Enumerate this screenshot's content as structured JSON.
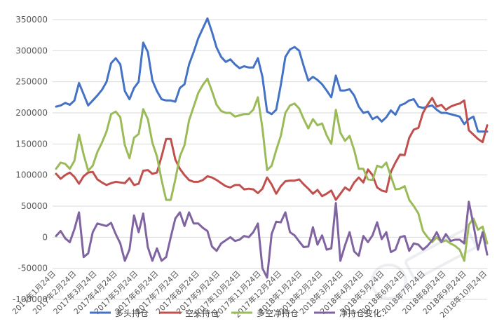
{
  "chart_data": {
    "type": "line",
    "title": "",
    "xlabel": "",
    "ylabel": "",
    "ylim": [
      -100000,
      350000
    ],
    "yticks": [
      -100000,
      -50000,
      0,
      50000,
      100000,
      150000,
      200000,
      250000,
      300000,
      350000
    ],
    "ytick_labels": [
      "-100000",
      "-50000",
      "0",
      "50000",
      "100000",
      "150000",
      "200000",
      "250000",
      "300000",
      "350000"
    ],
    "grid": true,
    "legend_position": "bottom",
    "x_labels": [
      "2017年1月24日",
      "2017年2月24日",
      "2017年3月24日",
      "2017年4月24日",
      "2017年5月24日",
      "2017年6月24日",
      "2017年7月24日",
      "2017年8月24日",
      "2017年9月24日",
      "2017年10月24日",
      "2017年11月24日",
      "2017年12月24日",
      "2018年1月24日",
      "2018年2月24日",
      "2018年3月24日",
      "2018年4月24日",
      "2018年5月24日",
      "2018年6月24日",
      "2018年7月24日",
      "2018年8月24日",
      "2018年9月24日",
      "2018年10月24日"
    ],
    "series": [
      {
        "name": "多头持仓",
        "color": "#4472C4",
        "values": [
          210000,
          212000,
          216000,
          213000,
          220000,
          248000,
          230000,
          212000,
          220000,
          228000,
          237000,
          250000,
          280000,
          288000,
          278000,
          235000,
          222000,
          240000,
          250000,
          313000,
          298000,
          252000,
          235000,
          222000,
          220000,
          220000,
          218000,
          240000,
          246000,
          278000,
          298000,
          320000,
          336000,
          352000,
          330000,
          305000,
          290000,
          282000,
          286000,
          278000,
          272000,
          275000,
          273000,
          273000,
          288000,
          258000,
          202000,
          198000,
          205000,
          245000,
          290000,
          302000,
          306000,
          300000,
          275000,
          252000,
          258000,
          253000,
          246000,
          236000,
          225000,
          260000,
          236000,
          236000,
          238000,
          228000,
          210000,
          200000,
          202000,
          190000,
          194000,
          186000,
          193000,
          204000,
          197000,
          212000,
          215000,
          220000,
          222000,
          210000,
          208000,
          210000,
          212000,
          205000,
          200000,
          200000,
          198000,
          196000,
          194000,
          182000,
          190000,
          194000,
          170000,
          170000,
          170000
        ]
      },
      {
        "name": "空头持仓",
        "color": "#C0504D",
        "values": [
          102000,
          94000,
          100000,
          104000,
          97000,
          86000,
          98000,
          104000,
          105000,
          93000,
          88000,
          84000,
          87000,
          89000,
          88000,
          87000,
          95000,
          84000,
          86000,
          107000,
          108000,
          102000,
          104000,
          130000,
          158000,
          158000,
          125000,
          110000,
          100000,
          92000,
          89000,
          89000,
          92000,
          98000,
          96000,
          92000,
          87000,
          82000,
          80000,
          84000,
          84000,
          77000,
          78000,
          77000,
          71000,
          78000,
          96000,
          85000,
          70000,
          82000,
          90000,
          91000,
          91000,
          93000,
          85000,
          78000,
          70000,
          76000,
          66000,
          70000,
          75000,
          60000,
          70000,
          80000,
          75000,
          88000,
          96000,
          88000,
          109000,
          100000,
          80000,
          75000,
          73000,
          105000,
          120000,
          133000,
          132000,
          160000,
          173000,
          176000,
          200000,
          213000,
          224000,
          210000,
          213000,
          205000,
          210000,
          213000,
          215000,
          220000,
          172000,
          165000,
          158000,
          153000,
          180000
        ]
      },
      {
        "name": "多空净持仓",
        "color": "#9BBB59",
        "values": [
          110000,
          120000,
          118000,
          110000,
          123000,
          165000,
          133000,
          107000,
          115000,
          137000,
          152000,
          170000,
          198000,
          202000,
          193000,
          148000,
          127000,
          160000,
          166000,
          206000,
          190000,
          152000,
          130000,
          92000,
          60000,
          60000,
          93000,
          130000,
          148000,
          188000,
          210000,
          232000,
          245000,
          255000,
          235000,
          213000,
          203000,
          200000,
          200000,
          194000,
          196000,
          198000,
          198000,
          205000,
          225000,
          175000,
          108000,
          115000,
          140000,
          163000,
          200000,
          212000,
          215000,
          207000,
          190000,
          175000,
          190000,
          180000,
          183000,
          164000,
          150000,
          205000,
          168000,
          155000,
          163000,
          140000,
          110000,
          110000,
          93000,
          92000,
          115000,
          112000,
          120000,
          98000,
          77000,
          78000,
          82000,
          60000,
          50000,
          38000,
          10000,
          0,
          -8000,
          0,
          -8000,
          -5000,
          -10000,
          -14000,
          -20000,
          -38000,
          20000,
          30000,
          12000,
          17000,
          -10000
        ]
      },
      {
        "name": "净持仓变化：",
        "color": "#8064A2",
        "values": [
          2000,
          10000,
          -2000,
          -8000,
          13000,
          40000,
          -32000,
          -26000,
          8000,
          22000,
          20000,
          18000,
          23000,
          5000,
          -10000,
          -38000,
          -20000,
          35000,
          8000,
          38000,
          -16000,
          -38000,
          -18000,
          -38000,
          -32000,
          0,
          30000,
          40000,
          18000,
          40000,
          22000,
          22000,
          15000,
          10000,
          -15000,
          -22000,
          -10000,
          -5000,
          0,
          -6000,
          -4000,
          2000,
          0,
          8000,
          22000,
          -50000,
          -65000,
          5000,
          25000,
          24000,
          40000,
          8000,
          3000,
          -7000,
          -16000,
          -15000,
          16000,
          -12000,
          3000,
          -20000,
          -18000,
          55000,
          -38000,
          -13000,
          8000,
          -23000,
          -30000,
          2000,
          -8000,
          3000,
          24000,
          -3000,
          8000,
          -24000,
          -20000,
          0,
          2000,
          -22000,
          -10000,
          -12000,
          -20000,
          -14000,
          -5000,
          8000,
          -8000,
          5000,
          -6000,
          -4000,
          -4000,
          -10000,
          57000,
          20000,
          -20000,
          8000,
          -28000
        ]
      }
    ]
  }
}
